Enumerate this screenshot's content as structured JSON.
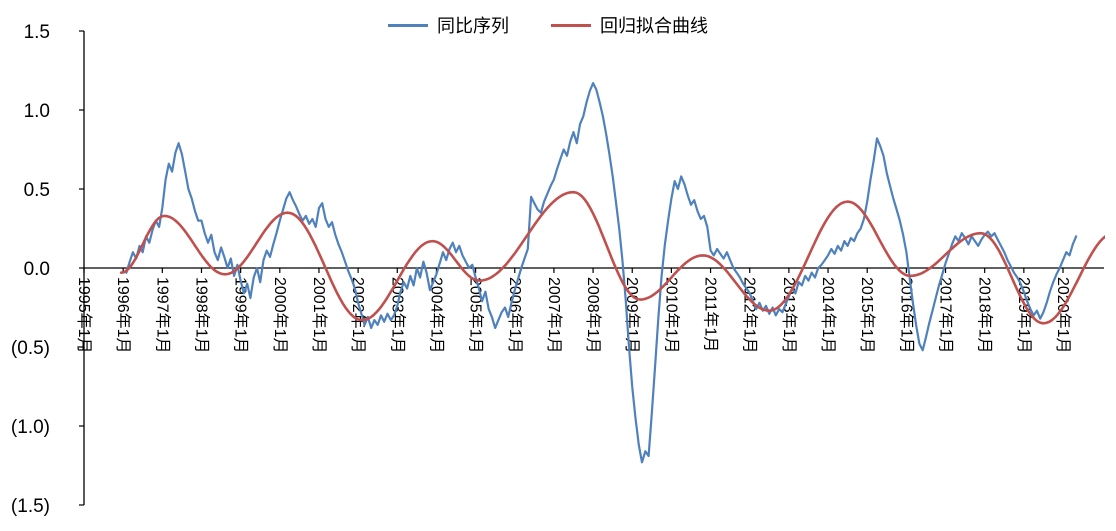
{
  "chart_data": {
    "type": "line",
    "title": "",
    "grid": false,
    "legend_position": "top-center",
    "axis_color": "#000000",
    "background_color": "#ffffff",
    "ylim": [
      -1.5,
      1.5
    ],
    "x_range_years": [
      1995,
      2021
    ],
    "y_tick_labels": [
      "1.5",
      "1.0",
      "0.5",
      "0.0",
      "(0.5)",
      "(1.0)",
      "(1.5)"
    ],
    "y_tick_values": [
      1.5,
      1.0,
      0.5,
      0.0,
      -0.5,
      -1.0,
      -1.5
    ],
    "x_tick_labels": [
      "1995年1月",
      "1996年1月",
      "1997年1月",
      "1998年1月",
      "1999年1月",
      "2000年1月",
      "2001年1月",
      "2002年1月",
      "2003年1月",
      "2004年1月",
      "2005年1月",
      "2006年1月",
      "2007年1月",
      "2008年1月",
      "2009年1月",
      "2010年1月",
      "2011年1月",
      "2012年1月",
      "2013年1月",
      "2014年1月",
      "2015年1月",
      "2016年1月",
      "2017年1月",
      "2018年1月",
      "2019年1月",
      "2020年1月"
    ],
    "series": [
      {
        "name": "同比序列",
        "color": "#4F81BD",
        "kind": "monthly-values",
        "start_year": 1996,
        "start_month": 2,
        "values": [
          -0.03,
          0.04,
          0.1,
          0.06,
          0.14,
          0.1,
          0.2,
          0.16,
          0.24,
          0.3,
          0.26,
          0.38,
          0.56,
          0.66,
          0.61,
          0.73,
          0.79,
          0.72,
          0.61,
          0.5,
          0.44,
          0.36,
          0.3,
          0.3,
          0.22,
          0.16,
          0.21,
          0.1,
          0.05,
          0.13,
          0.07,
          0.0,
          0.06,
          -0.05,
          0.02,
          -0.08,
          -0.16,
          -0.1,
          -0.19,
          -0.06,
          0.0,
          -0.09,
          0.05,
          0.11,
          0.07,
          0.15,
          0.22,
          0.3,
          0.37,
          0.44,
          0.48,
          0.43,
          0.39,
          0.34,
          0.3,
          0.33,
          0.28,
          0.31,
          0.26,
          0.38,
          0.41,
          0.31,
          0.26,
          0.29,
          0.21,
          0.15,
          0.1,
          0.04,
          -0.02,
          -0.07,
          -0.13,
          -0.22,
          -0.29,
          -0.36,
          -0.31,
          -0.38,
          -0.33,
          -0.36,
          -0.3,
          -0.34,
          -0.29,
          -0.33,
          -0.3,
          -0.24,
          -0.15,
          -0.09,
          -0.13,
          -0.05,
          -0.11,
          0.0,
          -0.06,
          0.04,
          -0.03,
          -0.14,
          -0.09,
          -0.04,
          0.03,
          0.1,
          0.05,
          0.12,
          0.16,
          0.1,
          0.14,
          0.08,
          0.04,
          0.0,
          0.02,
          -0.06,
          -0.13,
          -0.21,
          -0.15,
          -0.26,
          -0.31,
          -0.38,
          -0.33,
          -0.28,
          -0.25,
          -0.31,
          -0.22,
          -0.14,
          -0.07,
          0.0,
          0.06,
          0.12,
          0.45,
          0.41,
          0.37,
          0.35,
          0.42,
          0.47,
          0.52,
          0.56,
          0.63,
          0.69,
          0.75,
          0.71,
          0.8,
          0.86,
          0.79,
          0.91,
          0.96,
          1.05,
          1.12,
          1.17,
          1.13,
          1.05,
          0.96,
          0.85,
          0.72,
          0.58,
          0.42,
          0.25,
          0.05,
          -0.2,
          -0.5,
          -0.75,
          -0.95,
          -1.12,
          -1.23,
          -1.16,
          -1.19,
          -0.92,
          -0.62,
          -0.32,
          -0.05,
          0.15,
          0.3,
          0.44,
          0.55,
          0.5,
          0.58,
          0.53,
          0.46,
          0.4,
          0.43,
          0.36,
          0.31,
          0.33,
          0.26,
          0.11,
          0.08,
          0.12,
          0.09,
          0.06,
          0.1,
          0.05,
          0.0,
          -0.03,
          -0.06,
          -0.1,
          -0.13,
          -0.16,
          -0.21,
          -0.26,
          -0.22,
          -0.27,
          -0.24,
          -0.29,
          -0.25,
          -0.3,
          -0.26,
          -0.28,
          -0.23,
          -0.18,
          -0.13,
          -0.16,
          -0.09,
          -0.11,
          -0.05,
          -0.08,
          -0.03,
          -0.06,
          0.0,
          0.02,
          0.05,
          0.08,
          0.12,
          0.09,
          0.14,
          0.11,
          0.17,
          0.14,
          0.19,
          0.17,
          0.22,
          0.25,
          0.31,
          0.42,
          0.56,
          0.68,
          0.82,
          0.77,
          0.71,
          0.6,
          0.52,
          0.44,
          0.37,
          0.3,
          0.21,
          0.1,
          -0.06,
          -0.22,
          -0.36,
          -0.48,
          -0.52,
          -0.44,
          -0.35,
          -0.27,
          -0.19,
          -0.11,
          -0.04,
          0.03,
          0.09,
          0.15,
          0.2,
          0.17,
          0.22,
          0.19,
          0.15,
          0.2,
          0.17,
          0.14,
          0.18,
          0.21,
          0.23,
          0.2,
          0.22,
          0.18,
          0.14,
          0.1,
          0.05,
          0.01,
          -0.03,
          -0.06,
          -0.1,
          -0.15,
          -0.21,
          -0.26,
          -0.3,
          -0.27,
          -0.32,
          -0.28,
          -0.22,
          -0.15,
          -0.09,
          -0.04,
          0.0,
          0.05,
          0.1,
          0.08,
          0.15,
          0.2
        ]
      },
      {
        "name": "回归拟合曲线",
        "color": "#C0504D",
        "kind": "smooth-keypoints",
        "keypoints": [
          [
            1995.95,
            -0.03
          ],
          [
            1997.05,
            0.33
          ],
          [
            1998.6,
            -0.04
          ],
          [
            2000.2,
            0.35
          ],
          [
            2002.1,
            -0.33
          ],
          [
            2003.9,
            0.17
          ],
          [
            2005.1,
            -0.08
          ],
          [
            2007.5,
            0.48
          ],
          [
            2009.2,
            -0.2
          ],
          [
            2010.8,
            0.08
          ],
          [
            2012.5,
            -0.27
          ],
          [
            2014.5,
            0.42
          ],
          [
            2016.1,
            -0.05
          ],
          [
            2017.9,
            0.22
          ],
          [
            2019.5,
            -0.35
          ],
          [
            2021.3,
            0.22
          ]
        ]
      }
    ]
  }
}
